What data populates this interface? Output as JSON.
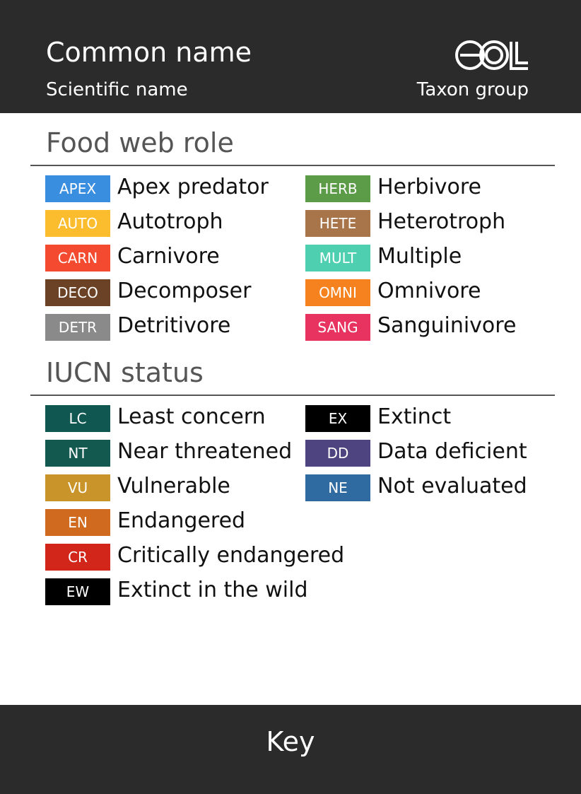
{
  "header": {
    "common_name": "Common name",
    "scientific_name": "Scientific name",
    "taxon_group": "Taxon group"
  },
  "sections": [
    {
      "title": "Food web role",
      "columns": [
        [
          {
            "code": "APEX",
            "label": "Apex predator",
            "color": "#3a8ee0"
          },
          {
            "code": "AUTO",
            "label": "Autotroph",
            "color": "#fbbd2e"
          },
          {
            "code": "CARN",
            "label": "Carnivore",
            "color": "#f44b30"
          },
          {
            "code": "DECO",
            "label": "Decomposer",
            "color": "#6b4226"
          },
          {
            "code": "DETR",
            "label": "Detritivore",
            "color": "#8a8a8a"
          }
        ],
        [
          {
            "code": "HERB",
            "label": "Herbivore",
            "color": "#5c9b48"
          },
          {
            "code": "HETE",
            "label": "Heterotroph",
            "color": "#a8744a"
          },
          {
            "code": "MULT",
            "label": "Multiple",
            "color": "#4ecfb0"
          },
          {
            "code": "OMNI",
            "label": "Omnivore",
            "color": "#f5811f"
          },
          {
            "code": "SANG",
            "label": "Sanguinivore",
            "color": "#e8325f"
          }
        ]
      ]
    },
    {
      "title": "IUCN status",
      "columns": [
        [
          {
            "code": "LC",
            "label": "Least concern",
            "color": "#0f5750"
          },
          {
            "code": "NT",
            "label": "Near threatened",
            "color": "#145950"
          },
          {
            "code": "VU",
            "label": "Vulnerable",
            "color": "#c9952a"
          },
          {
            "code": "EN",
            "label": "Endangered",
            "color": "#cf6a1e"
          },
          {
            "code": "CR",
            "label": "Critically endangered",
            "color": "#d2261a"
          },
          {
            "code": "EW",
            "label": "Extinct in the wild",
            "color": "#000000"
          }
        ],
        [
          {
            "code": "EX",
            "label": "Extinct",
            "color": "#000000"
          },
          {
            "code": "DD",
            "label": "Data deficient",
            "color": "#4e4480"
          },
          {
            "code": "NE",
            "label": "Not evaluated",
            "color": "#2f6aa1"
          }
        ]
      ]
    }
  ],
  "footer": {
    "title": "Key"
  }
}
